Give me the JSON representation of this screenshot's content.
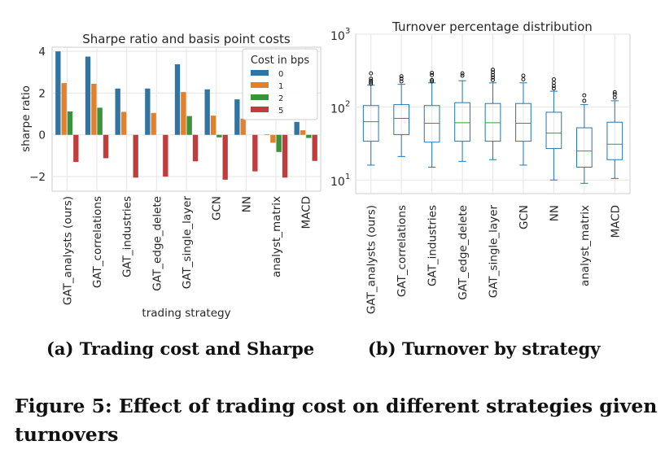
{
  "figure_caption": "Figure 5: Effect of trading cost on different strategies given turnovers",
  "subfigures": [
    {
      "caption": "(a) Trading cost and Sharpe"
    },
    {
      "caption": "(b) Turnover by strategy"
    }
  ],
  "chart_data": [
    {
      "type": "bar",
      "title": "Sharpe ratio and basis point costs",
      "xlabel": "trading strategy",
      "ylabel": "sharpe ratio",
      "categories": [
        "GAT_analysts (ours)",
        "GAT_correlations",
        "GAT_industries",
        "GAT_edge_delete",
        "GAT_single_layer",
        "GCN",
        "NN",
        "analyst_matrix",
        "MACD"
      ],
      "ylim": [
        -2.7,
        4.2
      ],
      "yticks": [
        4,
        2,
        0,
        -2
      ],
      "ytick_labels": [
        "4",
        "2",
        "0",
        "−2"
      ],
      "grid": true,
      "legend": {
        "title": "Cost in bps",
        "placement": "top-right"
      },
      "series": [
        {
          "name": "0",
          "color": "#3274a1",
          "values": [
            4.0,
            3.75,
            2.22,
            2.22,
            3.38,
            2.18,
            1.7,
            0.02,
            0.62
          ]
        },
        {
          "name": "1",
          "color": "#e1812c",
          "values": [
            2.48,
            2.45,
            1.1,
            1.05,
            2.05,
            0.92,
            0.78,
            -0.38,
            0.22
          ]
        },
        {
          "name": "2",
          "color": "#3a923a",
          "values": [
            1.12,
            1.3,
            0.0,
            0.0,
            0.9,
            -0.12,
            0.0,
            -0.82,
            -0.15
          ]
        },
        {
          "name": "5",
          "color": "#c03d3e",
          "values": [
            -1.3,
            -1.12,
            -2.05,
            -2.0,
            -1.27,
            -2.15,
            -1.75,
            -2.05,
            -1.25
          ]
        }
      ]
    },
    {
      "type": "box",
      "title": "Turnover percentage distribution",
      "yscale": "log",
      "ylim": [
        6.5,
        1000
      ],
      "ytick_labels": [
        {
          "base": "10",
          "exp": "1",
          "value": 10
        },
        {
          "base": "10",
          "exp": "2",
          "value": 100
        },
        {
          "base": "10",
          "exp": "3",
          "value": 1000
        }
      ],
      "grid": true,
      "categories": [
        "GAT_analysts (ours)",
        "GAT_correlations",
        "GAT_industries",
        "GAT_edge_delete",
        "GAT_single_layer",
        "GCN",
        "NN",
        "analyst_matrix",
        "MACD"
      ],
      "box_color": "#1f77b4",
      "median_color": "#2ca02c",
      "boxes": [
        {
          "whislo": 16,
          "q1": 34,
          "med": 63,
          "q3": 105,
          "whishi": 200,
          "fliers": [
            210,
            220,
            230,
            245,
            290
          ]
        },
        {
          "whislo": 21,
          "q1": 42,
          "med": 70,
          "q3": 108,
          "whishi": 205,
          "fliers": [
            225,
            245,
            265
          ]
        },
        {
          "whislo": 15,
          "q1": 33,
          "med": 60,
          "q3": 105,
          "whishi": 215,
          "fliers": [
            225,
            235,
            275,
            295
          ]
        },
        {
          "whislo": 18,
          "q1": 34,
          "med": 61,
          "q3": 115,
          "whishi": 230,
          "fliers": [
            270,
            290
          ]
        },
        {
          "whislo": 19,
          "q1": 34,
          "med": 61,
          "q3": 112,
          "whishi": 215,
          "fliers": [
            235,
            255,
            275,
            300,
            325
          ]
        },
        {
          "whislo": 16,
          "q1": 34,
          "med": 60,
          "q3": 112,
          "whishi": 215,
          "fliers": [
            240,
            270
          ]
        },
        {
          "whislo": 10,
          "q1": 27,
          "med": 44,
          "q3": 85,
          "whishi": 165,
          "fliers": [
            180,
            195,
            215,
            240
          ]
        },
        {
          "whislo": 9,
          "q1": 15,
          "med": 25,
          "q3": 52,
          "whishi": 108,
          "fliers": [
            122,
            145
          ]
        },
        {
          "whislo": 10.5,
          "q1": 19,
          "med": 31,
          "q3": 62,
          "whishi": 122,
          "fliers": [
            135,
            150,
            160
          ]
        }
      ]
    }
  ]
}
